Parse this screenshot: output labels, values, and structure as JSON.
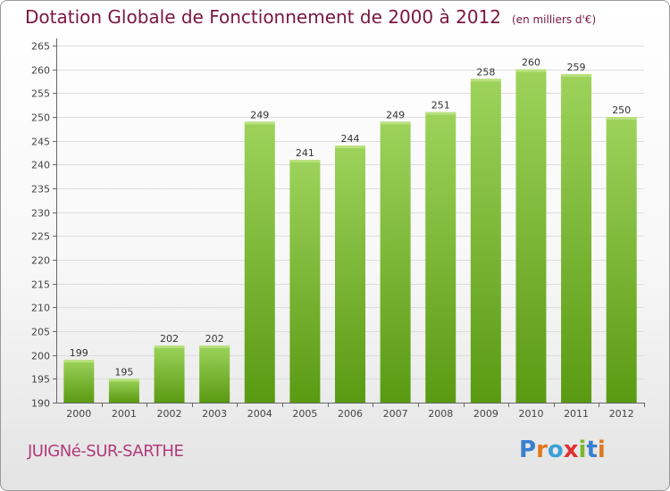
{
  "header": {
    "title": "Dotation Globale de Fonctionnement de 2000 à 2012",
    "unit": "(en milliers d'€)"
  },
  "footer": {
    "commune": "JUIGNé-SUR-SARTHE",
    "logo": "Proxiti"
  },
  "colors": {
    "title": "#7a1640",
    "commune": "#b03a7a",
    "bar_top": "#9dd35b",
    "bar_bottom": "#5a9a12",
    "logo_letters": [
      "#3a7fd0",
      "#e07820",
      "#3aa0d8",
      "#e03030",
      "#7ab830",
      "#3a7fd0",
      "#e07820"
    ]
  },
  "chart_data": {
    "type": "bar",
    "title": "Dotation Globale de Fonctionnement de 2000 à 2012",
    "subtitle": "(en milliers d'€)",
    "categories": [
      "2000",
      "2001",
      "2002",
      "2003",
      "2004",
      "2005",
      "2006",
      "2007",
      "2008",
      "2009",
      "2010",
      "2011",
      "2012"
    ],
    "values": [
      199,
      195,
      202,
      202,
      249,
      241,
      244,
      249,
      251,
      258,
      260,
      259,
      250
    ],
    "ylim": [
      190,
      265
    ],
    "yticks": [
      190,
      195,
      200,
      205,
      210,
      215,
      220,
      225,
      230,
      235,
      240,
      245,
      250,
      255,
      260,
      265
    ],
    "grid": true,
    "legend": "none"
  }
}
